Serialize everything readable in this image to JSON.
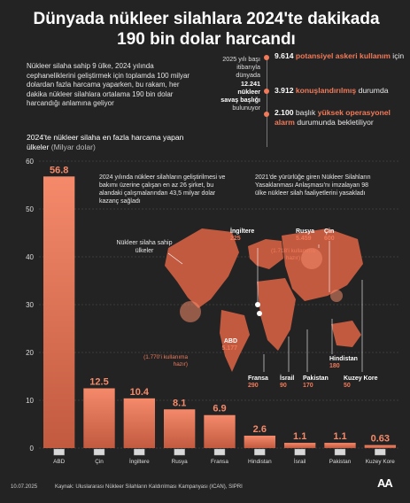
{
  "header": {
    "title": "Dünyada nükleer silahlara 2024'te dakikada 190 bin dolar harcandı",
    "intro": "Nükleer silaha sahip 9 ülke, 2024 yılında cephaneliklerini geliştirmek için toplamda 100 milyar dolardan fazla harcama yaparken, bu rakam, her dakika nükleer silahlara ortalama 190 bin dolar harcandığı anlamına geliyor"
  },
  "side_stat": {
    "line1": "2025 yılı başı",
    "line2": "itibarıyla",
    "line3": "dünyada",
    "number": "12.241",
    "line4": "nükleer",
    "line5": "savaş başlığı",
    "line6": "bulunuyor"
  },
  "stats": [
    {
      "num": "9.614",
      "hl": "potansiyel askeri kullanım",
      "rest": "için"
    },
    {
      "num": "3.912",
      "hl": "konuşlandırılmış",
      "rest": "durumda"
    },
    {
      "num": "2.100",
      "pre": "başlık",
      "hl": "yüksek operasyonel alarm",
      "rest": "durumunda bekletiliyor"
    }
  ],
  "chart_title": {
    "text": "2024'te nükleer silaha en fazla harcama yapan ülkeler",
    "unit": "(Milyar dolar)"
  },
  "annotations": {
    "a1": "2024 yılında nükleer silahların geliştirilmesi ve bakımı üzerine çalışan en az 26 şirket, bu alandaki çalışmalarından 43,5 milyar dolar kazanç sağladı",
    "a2": "2021'de yürürlüğe giren Nükleer Silahların Yasaklanması Anlaşması'nı imzalayan 98 ülke nükleer silah faaliyetlerini yasakladı",
    "map_caption": "Nükleer silaha sahip ülkeler"
  },
  "map_labels": {
    "abd": {
      "name": "ABD",
      "val": "5.177",
      "sub": "(1.770'i kullanıma hazır)"
    },
    "ingiltere": {
      "name": "İngiltere",
      "val": "225"
    },
    "rusya": {
      "name": "Rusya",
      "val": "5.459",
      "sub": "(1.718'i kullanıma hazır)"
    },
    "cin": {
      "name": "Çin",
      "val": "600"
    },
    "fransa": {
      "name": "Fransa",
      "val": "290"
    },
    "israil": {
      "name": "İsrail",
      "val": "90"
    },
    "pakistan": {
      "name": "Pakistan",
      "val": "170"
    },
    "hindistan": {
      "name": "Hindistan",
      "val": "180"
    },
    "kuzey_kore": {
      "name": "Kuzey Kore",
      "val": "50"
    }
  },
  "chart_data": {
    "type": "bar",
    "categories": [
      "ABD",
      "Çin",
      "İngiltere",
      "Rusya",
      "Fransa",
      "Hindistan",
      "İsrail",
      "Pakistan",
      "Kuzey Kore"
    ],
    "values": [
      56.8,
      12.5,
      10.4,
      8.1,
      6.9,
      2.6,
      1.1,
      1.1,
      0.63
    ],
    "labels": [
      "56.8",
      "12.5",
      "10.4",
      "8.1",
      "6.9",
      "2.6",
      "1.1",
      "1.1",
      "0.63"
    ],
    "ylim": [
      0,
      60
    ],
    "yticks": [
      "0",
      "10",
      "20",
      "30",
      "40",
      "50",
      "60"
    ],
    "grid": true,
    "bar_color_top": "#f48a6a",
    "bar_color_bottom": "#c25a40"
  },
  "footer": {
    "date": "10.07.2025",
    "source": "Kaynak: Uluslararası Nükleer Silahların Kaldırılması Kampanyası (ICAN), SIPRI",
    "logo": "AA"
  }
}
